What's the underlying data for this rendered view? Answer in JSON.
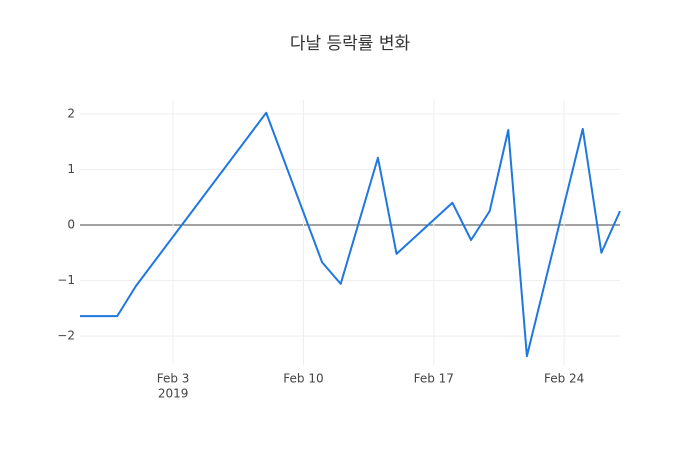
{
  "chart_data": {
    "type": "line",
    "title": "다날 등락률 변화",
    "x": [
      "2019-01-29",
      "2019-01-31",
      "2019-02-01",
      "2019-02-08",
      "2019-02-11",
      "2019-02-12",
      "2019-02-14",
      "2019-02-15",
      "2019-02-18",
      "2019-02-19",
      "2019-02-20",
      "2019-02-21",
      "2019-02-22",
      "2019-02-25",
      "2019-02-26",
      "2019-02-27"
    ],
    "series": [
      {
        "color": "#1f77e0",
        "values": [
          -1.64,
          -1.64,
          -1.1,
          2.02,
          -0.67,
          -1.06,
          1.21,
          -0.52,
          0.4,
          -0.27,
          0.25,
          1.71,
          -2.36,
          1.73,
          -0.5,
          0.25
        ]
      }
    ],
    "xlim": [
      "2019-01-29",
      "2019-02-27"
    ],
    "xticks": [
      {
        "value": "2019-02-03",
        "label": "Feb 3"
      },
      {
        "value": "2019-02-10",
        "label": "Feb 10"
      },
      {
        "value": "2019-02-17",
        "label": "Feb 17"
      },
      {
        "value": "2019-02-24",
        "label": "Feb 24"
      }
    ],
    "x_tick_year": "2019",
    "ylim": [
      -2.52,
      2.25
    ],
    "yticks": [
      {
        "value": -2,
        "label": "−2"
      },
      {
        "value": -1,
        "label": "−1"
      },
      0,
      1,
      2
    ],
    "grid": true,
    "zeroline": true
  }
}
